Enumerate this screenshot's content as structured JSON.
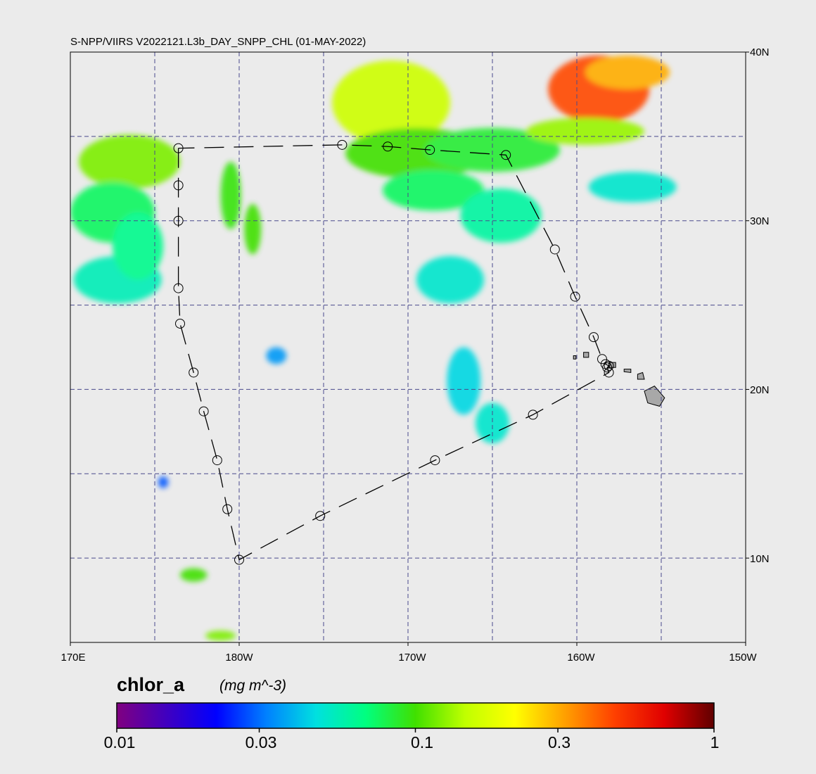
{
  "title": "S-NPP/VIIRS V2022121.L3b_DAY_SNPP_CHL (01-MAY-2022)",
  "map": {
    "lon_range": [
      170,
      210
    ],
    "lat_range": [
      5,
      40
    ],
    "lat_ticks": [
      {
        "value": 40,
        "label": "40N"
      },
      {
        "value": 30,
        "label": "30N"
      },
      {
        "value": 20,
        "label": "20N"
      },
      {
        "value": 10,
        "label": "10N"
      }
    ],
    "lon_ticks": [
      {
        "value": 170,
        "label": "170E"
      },
      {
        "value": 180,
        "label": "180W"
      },
      {
        "value": 190,
        "label": "170W"
      },
      {
        "value": 200,
        "label": "160W"
      },
      {
        "value": 210,
        "label": "150W"
      }
    ],
    "grid_lon": [
      175,
      180,
      185,
      190,
      195,
      200,
      205
    ],
    "grid_lat": [
      35,
      30,
      25,
      20,
      15,
      10
    ],
    "grid_color": "#4a4a8c",
    "background_color": "#ebebeb",
    "land_color": "#a8a8a8",
    "track_points": [
      [
        176.4,
        34.3
      ],
      [
        176.4,
        32.1
      ],
      [
        176.4,
        30.0
      ],
      [
        176.4,
        26.0
      ],
      [
        176.5,
        23.9
      ],
      [
        177.3,
        21.0
      ],
      [
        177.9,
        18.7
      ],
      [
        178.7,
        15.8
      ],
      [
        179.3,
        12.9
      ],
      [
        180.0,
        9.9
      ],
      [
        184.8,
        12.5
      ],
      [
        191.6,
        15.8
      ],
      [
        197.4,
        18.5
      ],
      [
        201.9,
        21.0
      ],
      [
        201.8,
        21.3
      ],
      [
        201.9,
        21.4
      ],
      [
        201.7,
        21.5
      ],
      [
        201.5,
        21.8
      ],
      [
        201.0,
        23.1
      ],
      [
        199.9,
        25.5
      ],
      [
        198.7,
        28.3
      ],
      [
        195.8,
        33.9
      ],
      [
        191.3,
        34.2
      ],
      [
        188.8,
        34.4
      ],
      [
        186.1,
        34.5
      ],
      [
        176.4,
        34.3
      ]
    ]
  },
  "colorbar": {
    "variable": "chlor_a",
    "units": "(mg m^-3)",
    "scale": "log",
    "range": [
      0.01,
      1
    ],
    "ticks": [
      {
        "value": 0.01,
        "label": "0.01"
      },
      {
        "value": 0.03,
        "label": "0.03"
      },
      {
        "value": 0.1,
        "label": "0.1"
      },
      {
        "value": 0.3,
        "label": "0.3"
      },
      {
        "value": 1,
        "label": "1"
      }
    ],
    "colors": [
      "#800080",
      "#4000c0",
      "#0000ff",
      "#0080ff",
      "#00e0e0",
      "#00ff80",
      "#40e000",
      "#c0ff00",
      "#ffff00",
      "#ffa000",
      "#ff4000",
      "#e00000",
      "#600000"
    ]
  },
  "chlorophyll_patches": [
    {
      "lon": 173.5,
      "lat": 33.5,
      "rx": 3.0,
      "ry": 1.6,
      "v": 0.12
    },
    {
      "lon": 172.5,
      "lat": 30.5,
      "rx": 2.5,
      "ry": 1.8,
      "v": 0.075
    },
    {
      "lon": 172.8,
      "lat": 26.5,
      "rx": 2.6,
      "ry": 1.4,
      "v": 0.055
    },
    {
      "lon": 174.0,
      "lat": 28.5,
      "rx": 1.5,
      "ry": 2.0,
      "v": 0.065
    },
    {
      "lon": 179.5,
      "lat": 31.5,
      "rx": 0.6,
      "ry": 2.0,
      "v": 0.095
    },
    {
      "lon": 180.8,
      "lat": 29.5,
      "rx": 0.5,
      "ry": 1.5,
      "v": 0.1
    },
    {
      "lon": 189.0,
      "lat": 37.0,
      "rx": 3.5,
      "ry": 2.5,
      "v": 0.16
    },
    {
      "lon": 190.5,
      "lat": 34.0,
      "rx": 4.2,
      "ry": 1.5,
      "v": 0.1
    },
    {
      "lon": 195.0,
      "lat": 34.2,
      "rx": 4.0,
      "ry": 1.3,
      "v": 0.085
    },
    {
      "lon": 191.5,
      "lat": 31.8,
      "rx": 3.0,
      "ry": 1.2,
      "v": 0.075
    },
    {
      "lon": 195.5,
      "lat": 30.3,
      "rx": 2.4,
      "ry": 1.6,
      "v": 0.06
    },
    {
      "lon": 192.5,
      "lat": 26.5,
      "rx": 2.0,
      "ry": 1.4,
      "v": 0.05
    },
    {
      "lon": 201.3,
      "lat": 37.8,
      "rx": 3.0,
      "ry": 2.0,
      "v": 0.45
    },
    {
      "lon": 203.0,
      "lat": 38.8,
      "rx": 2.5,
      "ry": 1.0,
      "v": 0.3
    },
    {
      "lon": 200.5,
      "lat": 35.3,
      "rx": 3.5,
      "ry": 0.8,
      "v": 0.13
    },
    {
      "lon": 203.3,
      "lat": 32.0,
      "rx": 2.6,
      "ry": 0.9,
      "v": 0.05
    },
    {
      "lon": 193.3,
      "lat": 20.5,
      "rx": 1.0,
      "ry": 2.0,
      "v": 0.045
    },
    {
      "lon": 195.0,
      "lat": 18.0,
      "rx": 1.0,
      "ry": 1.2,
      "v": 0.05
    },
    {
      "lon": 182.2,
      "lat": 22.0,
      "rx": 0.6,
      "ry": 0.5,
      "v": 0.035
    },
    {
      "lon": 175.5,
      "lat": 14.5,
      "rx": 0.3,
      "ry": 0.35,
      "v": 0.028
    },
    {
      "lon": 177.3,
      "lat": 9.0,
      "rx": 0.8,
      "ry": 0.4,
      "v": 0.1
    },
    {
      "lon": 178.9,
      "lat": 5.4,
      "rx": 0.9,
      "ry": 0.3,
      "v": 0.12
    }
  ]
}
